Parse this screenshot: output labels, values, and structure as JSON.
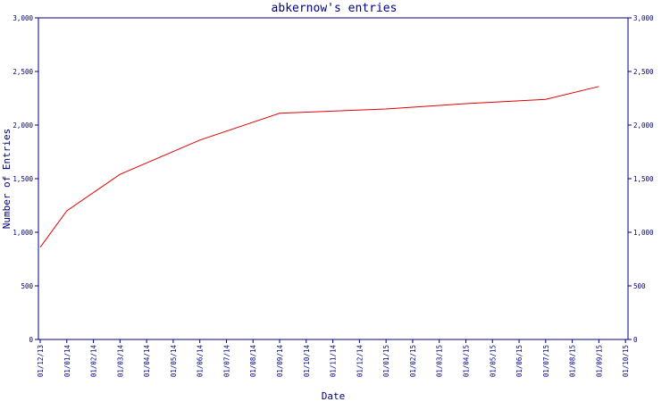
{
  "colors": {
    "axis": "#000080",
    "line": "#e00000",
    "background": "#ffffff"
  },
  "chart_data": {
    "type": "line",
    "title": "abkernow's entries",
    "xlabel": "Date",
    "ylabel": "Number of Entries",
    "grid": false,
    "legend": "none",
    "ylim": [
      0,
      3000
    ],
    "yticks": [
      0,
      500,
      1000,
      1500,
      2000,
      2500,
      3000
    ],
    "ytick_labels": [
      "0",
      "500",
      "1,000",
      "1,500",
      "2,000",
      "2,500",
      "3,000"
    ],
    "x_categories": [
      "01/12/13",
      "01/01/14",
      "01/02/14",
      "01/03/14",
      "01/04/14",
      "01/05/14",
      "01/06/14",
      "01/07/14",
      "01/08/14",
      "01/09/14",
      "01/10/14",
      "01/11/14",
      "01/12/14",
      "01/01/15",
      "01/02/15",
      "01/03/15",
      "01/04/15",
      "01/05/15",
      "01/06/15",
      "01/07/15",
      "01/08/15",
      "01/09/15",
      "01/10/15"
    ],
    "series": [
      {
        "points": [
          {
            "x": "01/12/13",
            "y": 860
          },
          {
            "x": "01/01/14",
            "y": 1200
          },
          {
            "x": "01/03/14",
            "y": 1540
          },
          {
            "x": "01/06/14",
            "y": 1860
          },
          {
            "x": "01/09/14",
            "y": 2110
          },
          {
            "x": "01/01/15",
            "y": 2150
          },
          {
            "x": "01/04/15",
            "y": 2200
          },
          {
            "x": "01/07/15",
            "y": 2240
          },
          {
            "x": "01/09/15",
            "y": 2360
          }
        ]
      }
    ]
  }
}
